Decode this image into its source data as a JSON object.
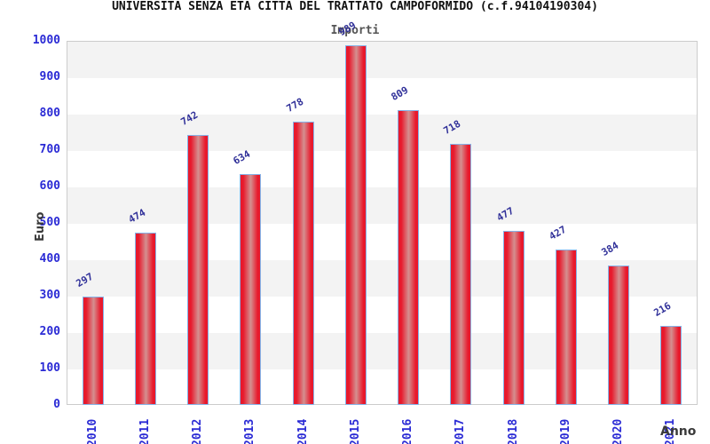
{
  "title": "UNIVERSITA SENZA ETA CITTA DEL TRATTATO CAMPOFORMIDO (c.f.94104190304)",
  "subtitle": "Importi",
  "axes": {
    "ylabel": "Euro",
    "xlabel": "Anno",
    "yticks": [
      0,
      100,
      200,
      300,
      400,
      500,
      600,
      700,
      800,
      900,
      1000
    ]
  },
  "colors": {
    "bar_red": "#e8192c",
    "bar_center": "#d49090",
    "bar_border": "#85b3e8",
    "tick_blue": "#2b2bd5",
    "value_label_navy": "#303099",
    "band_gray": "#f3f3f3",
    "plot_border": "#cccccc"
  },
  "chart_data": {
    "type": "bar",
    "title": "Importi",
    "categories": [
      "2010",
      "2011",
      "2012",
      "2013",
      "2014",
      "2015",
      "2016",
      "2017",
      "2018",
      "2019",
      "2020",
      "2021"
    ],
    "values": [
      297,
      474,
      742,
      634,
      778,
      989,
      809,
      718,
      477,
      427,
      384,
      216
    ],
    "xlabel": "Anno",
    "ylabel": "Euro",
    "ylim": [
      0,
      1000
    ],
    "ytick_step": 100,
    "grid": "alternating horizontal bands, gray from 1000-900 downward",
    "legend": null,
    "bar_style": "red cylinder-gradient bars with light blue border, navy rotated value labels"
  }
}
